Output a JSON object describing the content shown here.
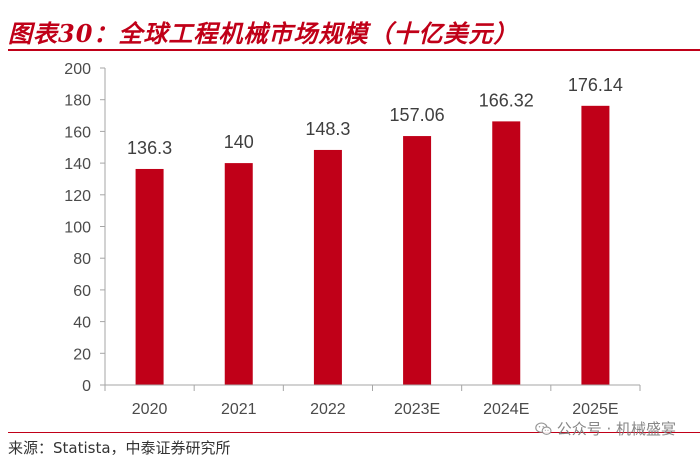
{
  "figure": {
    "title": "图表30：全球工程机械市场规模（十亿美元）",
    "source": "来源：Statista，中泰证券研究所",
    "watermark": "公众号 · 机械盛宴",
    "watermark_icon": "wechat-icon"
  },
  "colors": {
    "accent": "#c00018",
    "bar": "#c00018",
    "axis": "#a6a6a6"
  },
  "chart_data": {
    "type": "bar",
    "categories": [
      "2020",
      "2021",
      "2022",
      "2023E",
      "2024E",
      "2025E"
    ],
    "values": [
      136.3,
      140,
      148.3,
      157.06,
      166.32,
      176.14
    ],
    "data_labels": [
      "136.3",
      "140",
      "148.3",
      "157.06",
      "166.32",
      "176.14"
    ],
    "y_ticks": [
      0,
      20,
      40,
      60,
      80,
      100,
      120,
      140,
      160,
      180,
      200
    ],
    "ylim": [
      0,
      200
    ],
    "grid": false,
    "legend": "none"
  }
}
